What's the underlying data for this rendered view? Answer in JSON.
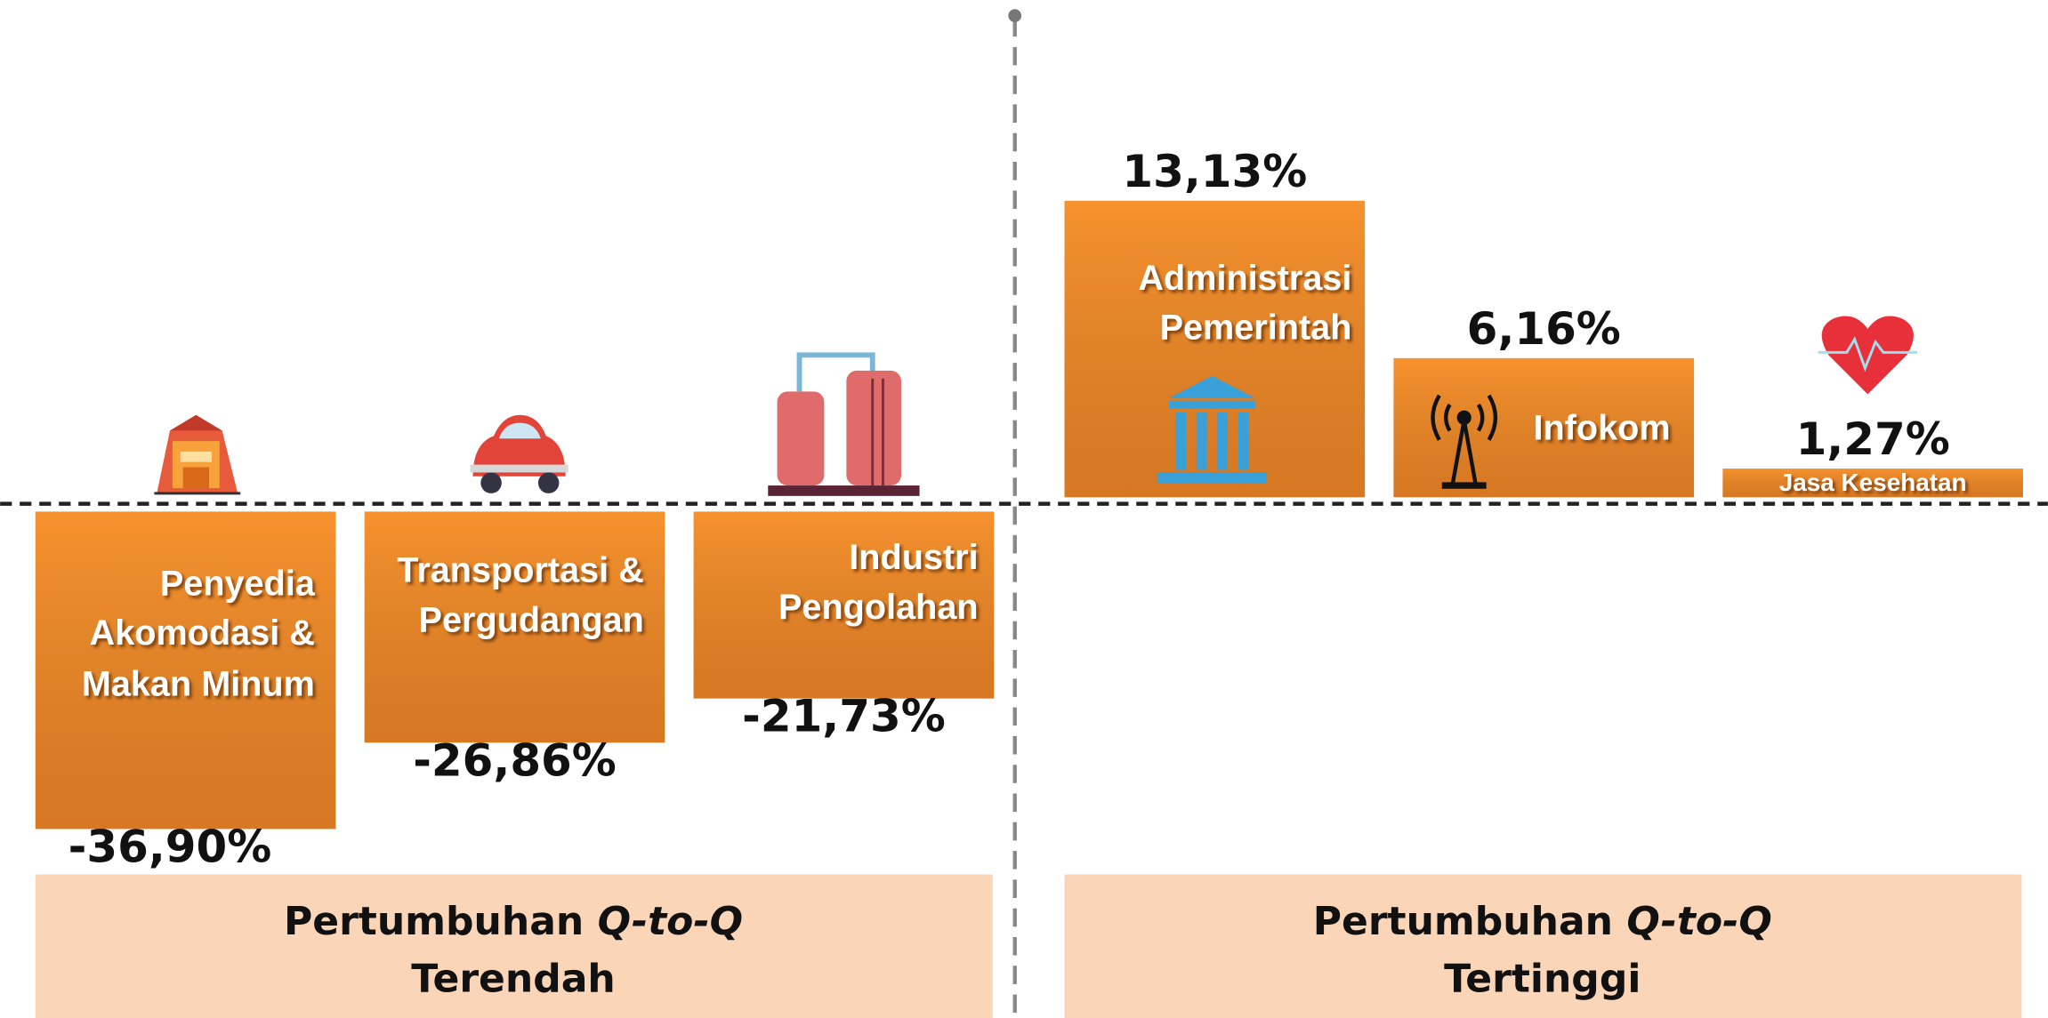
{
  "chart_data": {
    "type": "bar",
    "categories": [
      "Penyedia Akomodasi & Makan Minum",
      "Transportasi & Pergudangan",
      "Industri Pengolahan",
      "Administrasi Pemerintah",
      "Infokom",
      "Jasa Kesehatan"
    ],
    "values": [
      -36.9,
      -26.86,
      -21.73,
      13.13,
      6.16,
      1.27
    ],
    "value_labels": [
      "-36,90%",
      "-26,86%",
      "-21,73%",
      "13,13%",
      "6,16%",
      "1,27%"
    ],
    "color": "#f7922e",
    "panels": [
      {
        "text": "Pertumbuhan",
        "emphasis": "Q-to-Q",
        "label": "Terendah"
      },
      {
        "text": "Pertumbuhan",
        "emphasis": "Q-to-Q",
        "label": "Tertinggi"
      }
    ]
  }
}
